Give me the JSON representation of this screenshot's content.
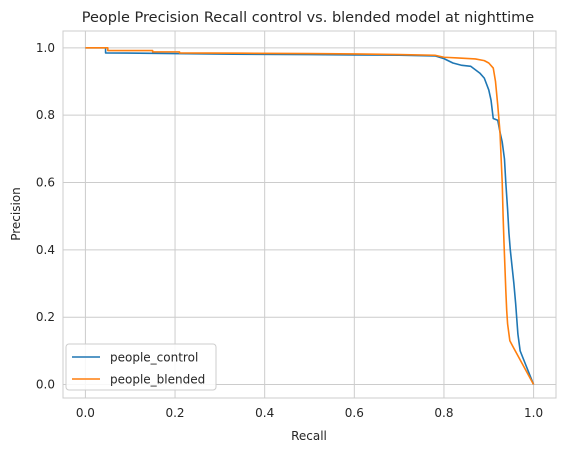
{
  "chart_data": {
    "type": "line",
    "title": "People Precision Recall control vs. blended model at nighttime",
    "xlabel": "Recall",
    "ylabel": "Precision",
    "xlim": [
      -0.05,
      1.05
    ],
    "ylim": [
      -0.04,
      1.05
    ],
    "xticks": [
      0.0,
      0.2,
      0.4,
      0.6,
      0.8,
      1.0
    ],
    "xtick_labels": [
      "0.0",
      "0.2",
      "0.4",
      "0.6",
      "0.8",
      "1.0"
    ],
    "yticks": [
      0.0,
      0.2,
      0.4,
      0.6,
      0.8,
      1.0
    ],
    "ytick_labels": [
      "0.0",
      "0.2",
      "0.4",
      "0.6",
      "0.8",
      "1.0"
    ],
    "grid": true,
    "legend": "lower-left",
    "series": [
      {
        "name": "people_control",
        "color": "#1f77b4",
        "points": [
          [
            0.0,
            1.0
          ],
          [
            0.045,
            1.0
          ],
          [
            0.045,
            0.985
          ],
          [
            0.2,
            0.983
          ],
          [
            0.33,
            0.981
          ],
          [
            0.5,
            0.98
          ],
          [
            0.6,
            0.979
          ],
          [
            0.7,
            0.978
          ],
          [
            0.78,
            0.976
          ],
          [
            0.8,
            0.968
          ],
          [
            0.82,
            0.955
          ],
          [
            0.84,
            0.948
          ],
          [
            0.86,
            0.945
          ],
          [
            0.87,
            0.935
          ],
          [
            0.88,
            0.925
          ],
          [
            0.89,
            0.91
          ],
          [
            0.9,
            0.875
          ],
          [
            0.905,
            0.845
          ],
          [
            0.91,
            0.79
          ],
          [
            0.92,
            0.785
          ],
          [
            0.925,
            0.75
          ],
          [
            0.93,
            0.72
          ],
          [
            0.935,
            0.67
          ],
          [
            0.938,
            0.6
          ],
          [
            0.942,
            0.52
          ],
          [
            0.945,
            0.45
          ],
          [
            0.948,
            0.4
          ],
          [
            0.952,
            0.35
          ],
          [
            0.956,
            0.3
          ],
          [
            0.96,
            0.24
          ],
          [
            0.965,
            0.15
          ],
          [
            0.97,
            0.1
          ],
          [
            1.0,
            0.0
          ]
        ]
      },
      {
        "name": "people_blended",
        "color": "#ff7f0e",
        "points": [
          [
            0.0,
            1.0
          ],
          [
            0.05,
            1.0
          ],
          [
            0.05,
            0.992
          ],
          [
            0.15,
            0.992
          ],
          [
            0.15,
            0.988
          ],
          [
            0.21,
            0.988
          ],
          [
            0.21,
            0.985
          ],
          [
            0.35,
            0.984
          ],
          [
            0.5,
            0.983
          ],
          [
            0.6,
            0.982
          ],
          [
            0.7,
            0.98
          ],
          [
            0.78,
            0.978
          ],
          [
            0.8,
            0.972
          ],
          [
            0.83,
            0.97
          ],
          [
            0.87,
            0.967
          ],
          [
            0.89,
            0.962
          ],
          [
            0.9,
            0.955
          ],
          [
            0.91,
            0.94
          ],
          [
            0.915,
            0.9
          ],
          [
            0.92,
            0.83
          ],
          [
            0.925,
            0.75
          ],
          [
            0.928,
            0.66
          ],
          [
            0.93,
            0.6
          ],
          [
            0.932,
            0.5
          ],
          [
            0.934,
            0.42
          ],
          [
            0.936,
            0.35
          ],
          [
            0.938,
            0.28
          ],
          [
            0.94,
            0.22
          ],
          [
            0.942,
            0.18
          ],
          [
            0.947,
            0.13
          ],
          [
            0.955,
            0.11
          ],
          [
            1.0,
            0.0
          ]
        ]
      }
    ]
  }
}
